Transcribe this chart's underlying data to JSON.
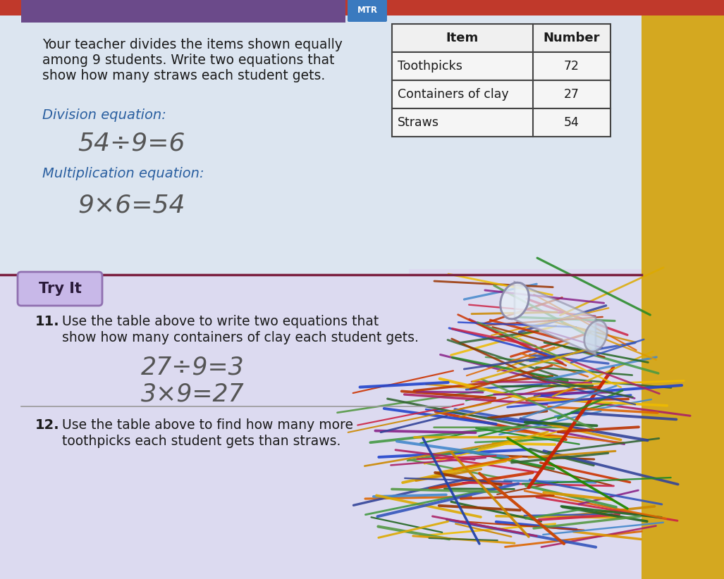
{
  "page_bg": "#dce5f0",
  "upper_section_bg": "#dce5f0",
  "lower_section_bg": "#e0dff0",
  "yellow_bg": "#d4a820",
  "red_top_bar": "#c0392b",
  "purple_top_bar": "#6b4a8a",
  "mtr_label": "MTR",
  "mtr_bg": "#3a7abf",
  "header_text_line1": "Your teacher divides the items shown equally",
  "header_text_line2": "among 9 students. Write two equations that",
  "header_text_line3": "show how many straws each student gets.",
  "table_headers": [
    "Item",
    "Number"
  ],
  "table_rows": [
    [
      "Toothpicks",
      "72"
    ],
    [
      "Containers of clay",
      "27"
    ],
    [
      "Straws",
      "54"
    ]
  ],
  "division_label": "Division equation:",
  "division_eq": "54÷9=6",
  "mult_label": "Multiplication equation:",
  "mult_eq": "9×6=54",
  "divider_color": "#7b2040",
  "try_it_label": "Try It",
  "try_it_bg": "#c8b8e8",
  "try_it_border": "#9070b0",
  "q11_num": "11.",
  "q11_text_line1": "Use the table above to write two equations that",
  "q11_text_line2": "show how many containers of clay each student gets.",
  "q11_eq1": "27÷9=3",
  "q11_eq2": "3×9=27",
  "q12_num": "12.",
  "q12_text_line1": "Use the table above to find how many more",
  "q12_text_line2": "toothpicks each student gets than straws.",
  "text_color": "#1a1a1a",
  "label_color": "#2a5fa0",
  "handwriting_color": "#555555",
  "left_yellow_strip": "#d8a820",
  "gray_bg_right": "#c8c0b0"
}
